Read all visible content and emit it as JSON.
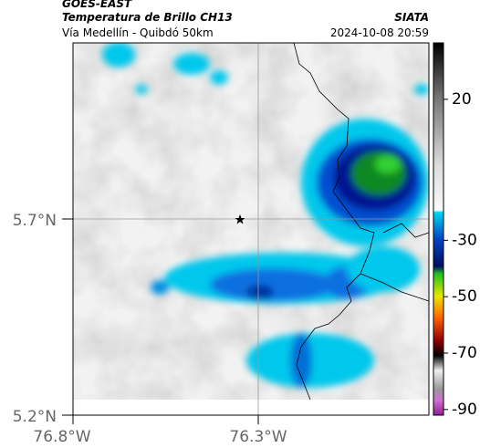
{
  "header": {
    "satellite": "GOES-EAST",
    "product": "Temperatura de Brillo CH13",
    "agency": "SIATA",
    "route": "Vía Medellín - Quibdó 50km",
    "timestamp": "2024-10-08 20:59"
  },
  "map": {
    "lat_labels": [
      "5.7°N",
      "5.2°N"
    ],
    "lon_labels": [
      "76.8°W",
      "76.3°W"
    ]
  },
  "colorbar": {
    "lim": [
      -92,
      40
    ],
    "ticks": [
      20,
      -30,
      -50,
      -70,
      -90
    ]
  }
}
